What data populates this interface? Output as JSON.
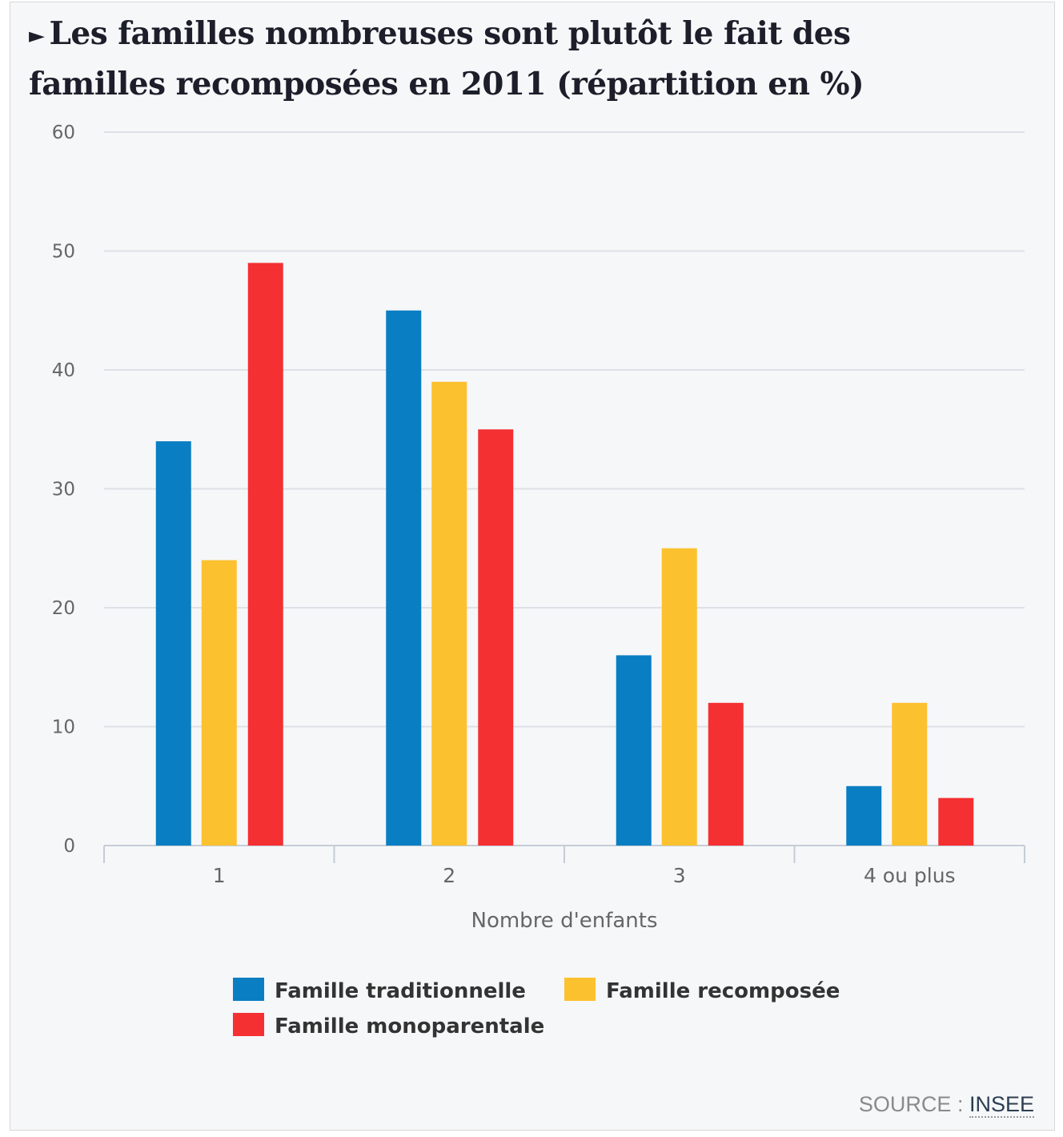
{
  "chart_data": {
    "type": "bar",
    "title": "Les familles nombreuses sont plutôt le fait des familles recomposées en 2011 (répartition en %)",
    "xlabel": "Nombre d'enfants",
    "ylabel": "",
    "categories": [
      "1",
      "2",
      "3",
      "4 ou plus"
    ],
    "series": [
      {
        "name": "Famille traditionnelle",
        "color": "#0a7ec2",
        "values": [
          34,
          45,
          16,
          5
        ]
      },
      {
        "name": "Famille recomposée",
        "color": "#fcc12e",
        "values": [
          24,
          39,
          25,
          12
        ]
      },
      {
        "name": "Famille monoparentale",
        "color": "#f43032",
        "values": [
          49,
          35,
          12,
          4
        ]
      }
    ],
    "ylim": [
      0,
      60
    ],
    "yticks": [
      0,
      10,
      20,
      30,
      40,
      50,
      60
    ],
    "grid": true,
    "legend_position": "bottom"
  },
  "source": {
    "label": "SOURCE :",
    "link": "INSEE"
  }
}
